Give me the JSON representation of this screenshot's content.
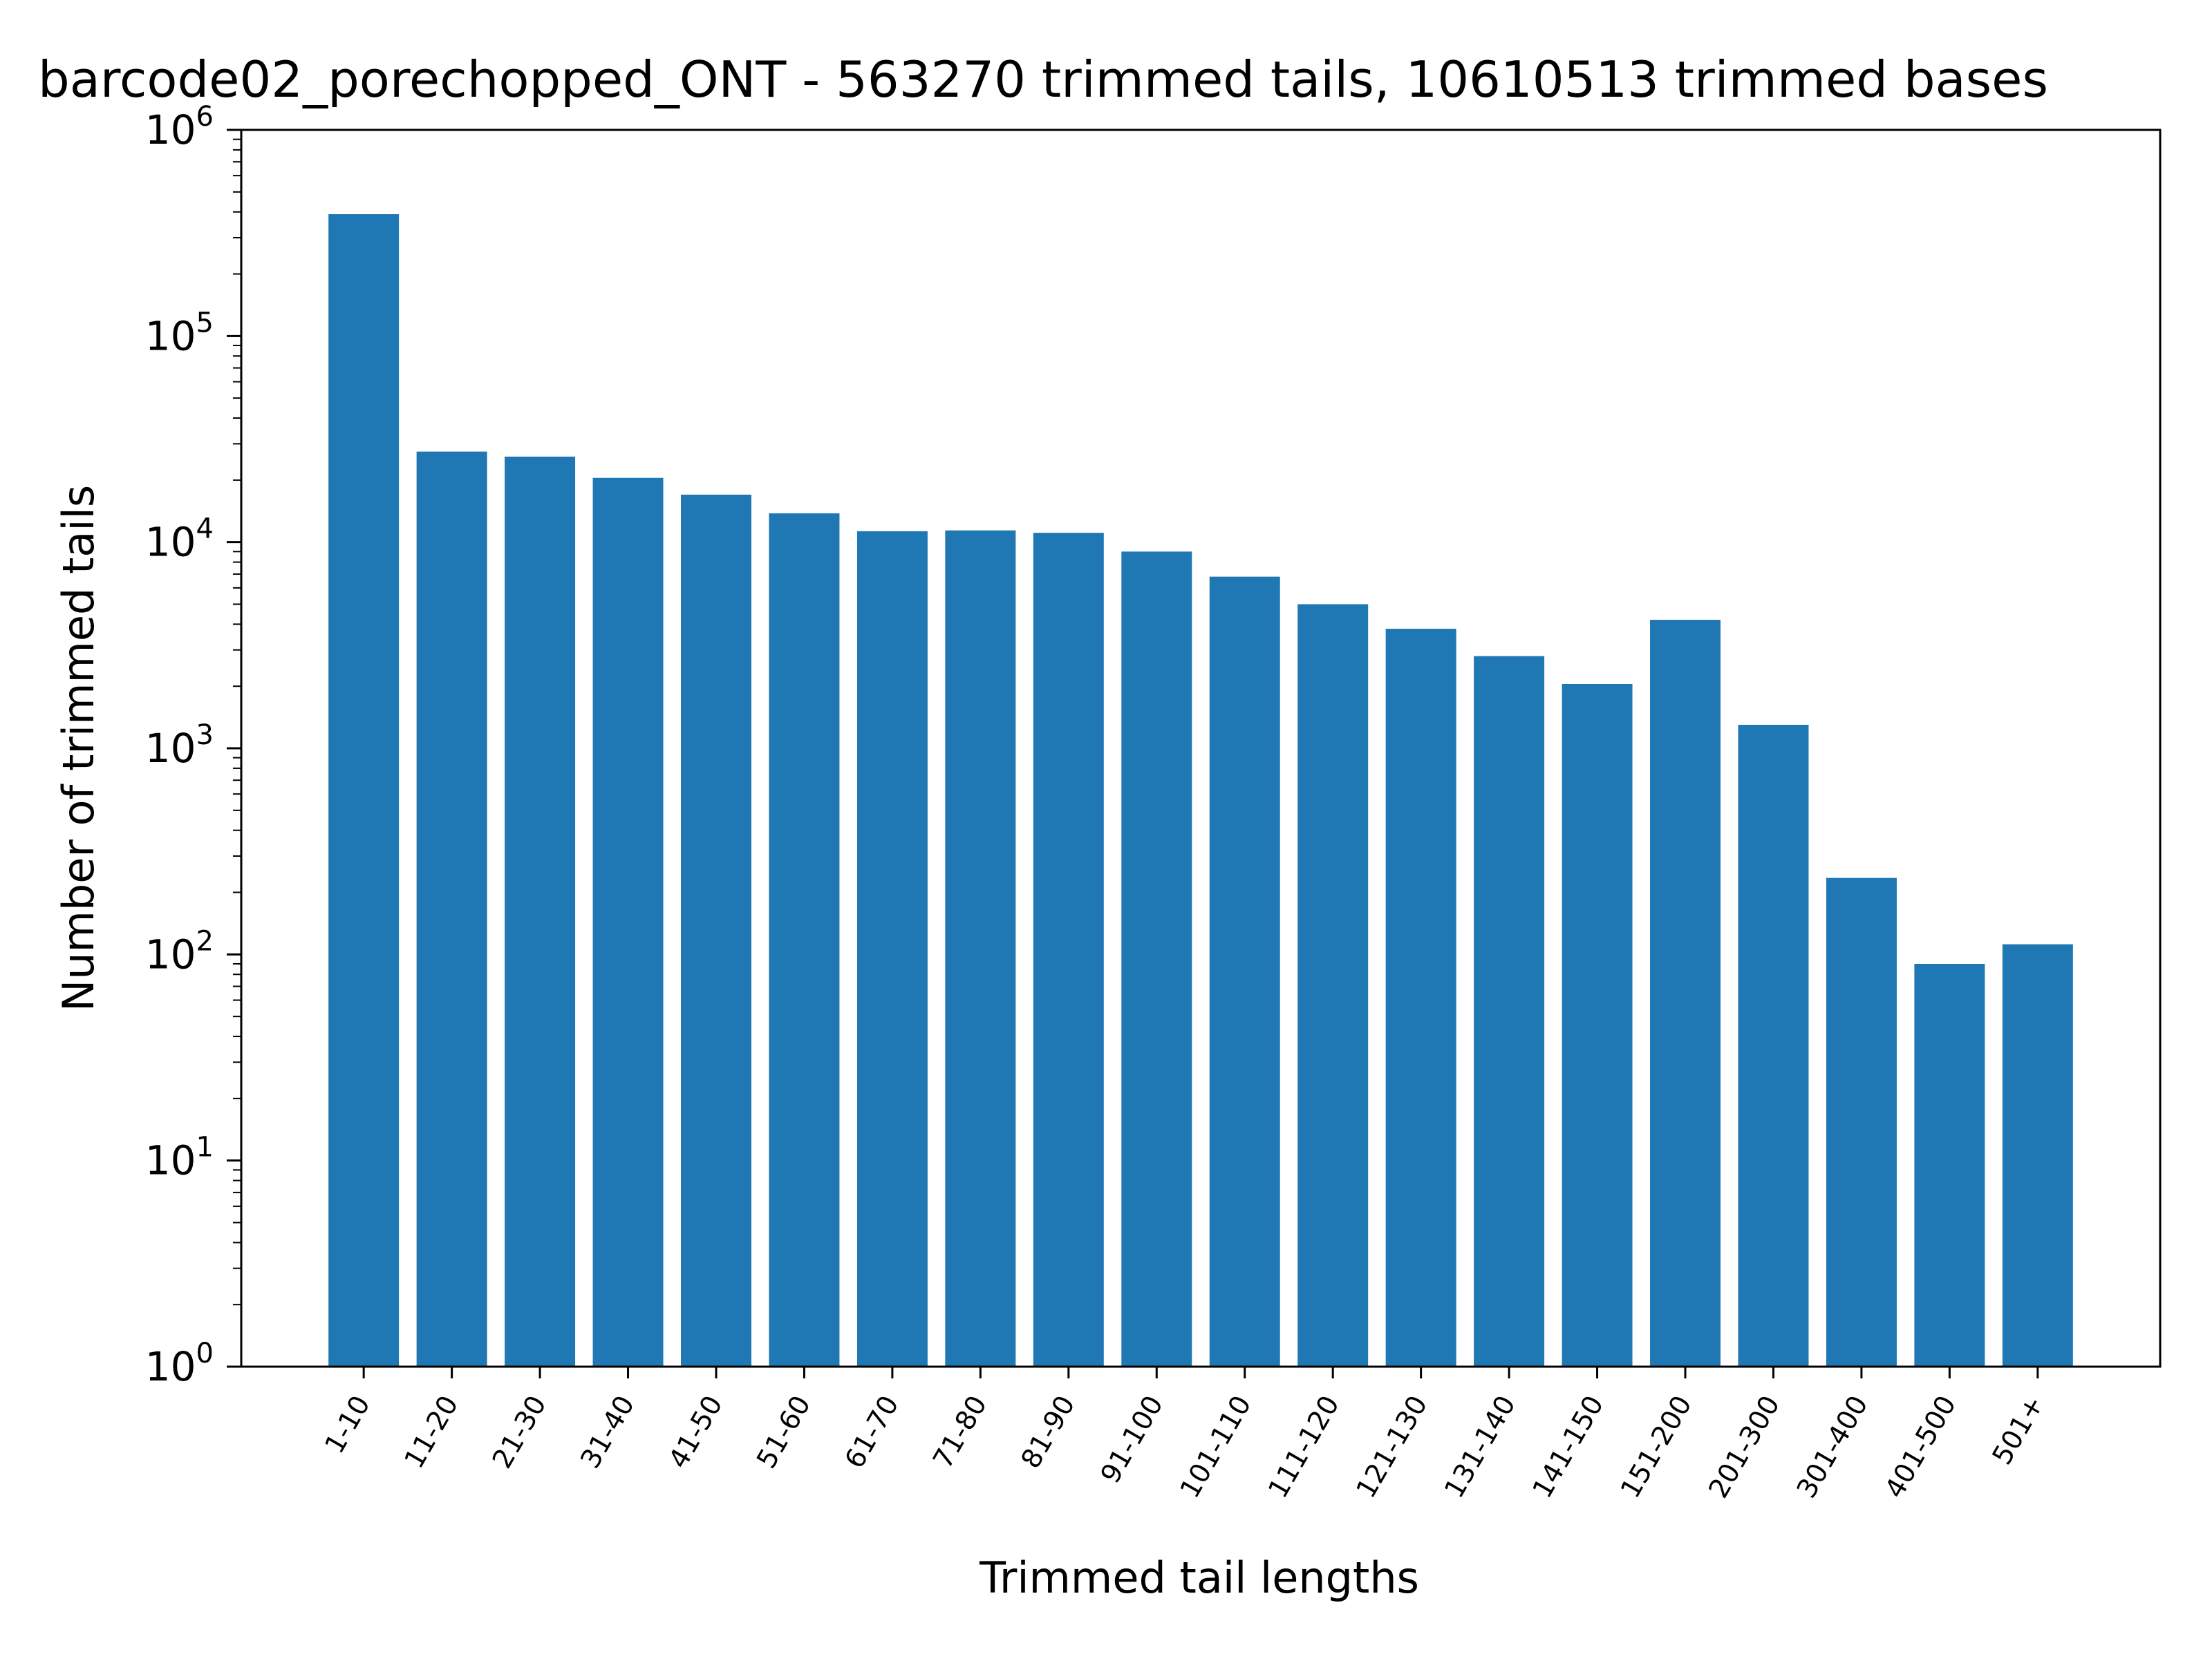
{
  "chart_data": {
    "type": "bar",
    "title": "barcode02_porechopped_ONT - 563270 trimmed tails, 10610513 trimmed bases",
    "xlabel": "Trimmed tail lengths",
    "ylabel": "Number of trimmed tails",
    "yscale": "log",
    "ylim": [
      1,
      1000000
    ],
    "yticks": [
      {
        "base": "10",
        "exp": "0",
        "value": 1
      },
      {
        "base": "10",
        "exp": "1",
        "value": 10
      },
      {
        "base": "10",
        "exp": "2",
        "value": 100
      },
      {
        "base": "10",
        "exp": "3",
        "value": 1000
      },
      {
        "base": "10",
        "exp": "4",
        "value": 10000
      },
      {
        "base": "10",
        "exp": "5",
        "value": 100000
      },
      {
        "base": "10",
        "exp": "6",
        "value": 1000000
      }
    ],
    "categories": [
      "1-10",
      "11-20",
      "21-30",
      "31-40",
      "41-50",
      "51-60",
      "61-70",
      "71-80",
      "81-90",
      "91-100",
      "101-110",
      "111-120",
      "121-130",
      "131-140",
      "141-150",
      "151-200",
      "201-300",
      "301-400",
      "401-500",
      "501+"
    ],
    "values": [
      390000,
      27500,
      26000,
      20500,
      17000,
      13800,
      11300,
      11400,
      11100,
      9000,
      6800,
      5000,
      3800,
      2800,
      2050,
      4200,
      1300,
      235,
      90,
      112
    ],
    "bar_color": "#1f77b4",
    "grid": false,
    "legend": "none"
  }
}
